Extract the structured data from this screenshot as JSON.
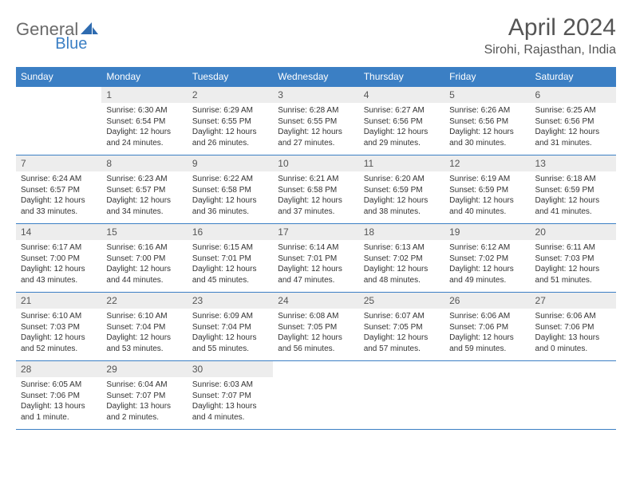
{
  "brand": {
    "part1": "General",
    "part2": "Blue"
  },
  "title": "April 2024",
  "location": "Sirohi, Rajasthan, India",
  "colors": {
    "header_bg": "#3b7fc4",
    "header_text": "#ffffff",
    "daynum_bg": "#ededed",
    "body_text": "#333333",
    "rule": "#3b7fc4",
    "title_text": "#555555"
  },
  "weekdays": [
    "Sunday",
    "Monday",
    "Tuesday",
    "Wednesday",
    "Thursday",
    "Friday",
    "Saturday"
  ],
  "weeks": [
    [
      null,
      {
        "n": "1",
        "sr": "Sunrise: 6:30 AM",
        "ss": "Sunset: 6:54 PM",
        "d1": "Daylight: 12 hours",
        "d2": "and 24 minutes."
      },
      {
        "n": "2",
        "sr": "Sunrise: 6:29 AM",
        "ss": "Sunset: 6:55 PM",
        "d1": "Daylight: 12 hours",
        "d2": "and 26 minutes."
      },
      {
        "n": "3",
        "sr": "Sunrise: 6:28 AM",
        "ss": "Sunset: 6:55 PM",
        "d1": "Daylight: 12 hours",
        "d2": "and 27 minutes."
      },
      {
        "n": "4",
        "sr": "Sunrise: 6:27 AM",
        "ss": "Sunset: 6:56 PM",
        "d1": "Daylight: 12 hours",
        "d2": "and 29 minutes."
      },
      {
        "n": "5",
        "sr": "Sunrise: 6:26 AM",
        "ss": "Sunset: 6:56 PM",
        "d1": "Daylight: 12 hours",
        "d2": "and 30 minutes."
      },
      {
        "n": "6",
        "sr": "Sunrise: 6:25 AM",
        "ss": "Sunset: 6:56 PM",
        "d1": "Daylight: 12 hours",
        "d2": "and 31 minutes."
      }
    ],
    [
      {
        "n": "7",
        "sr": "Sunrise: 6:24 AM",
        "ss": "Sunset: 6:57 PM",
        "d1": "Daylight: 12 hours",
        "d2": "and 33 minutes."
      },
      {
        "n": "8",
        "sr": "Sunrise: 6:23 AM",
        "ss": "Sunset: 6:57 PM",
        "d1": "Daylight: 12 hours",
        "d2": "and 34 minutes."
      },
      {
        "n": "9",
        "sr": "Sunrise: 6:22 AM",
        "ss": "Sunset: 6:58 PM",
        "d1": "Daylight: 12 hours",
        "d2": "and 36 minutes."
      },
      {
        "n": "10",
        "sr": "Sunrise: 6:21 AM",
        "ss": "Sunset: 6:58 PM",
        "d1": "Daylight: 12 hours",
        "d2": "and 37 minutes."
      },
      {
        "n": "11",
        "sr": "Sunrise: 6:20 AM",
        "ss": "Sunset: 6:59 PM",
        "d1": "Daylight: 12 hours",
        "d2": "and 38 minutes."
      },
      {
        "n": "12",
        "sr": "Sunrise: 6:19 AM",
        "ss": "Sunset: 6:59 PM",
        "d1": "Daylight: 12 hours",
        "d2": "and 40 minutes."
      },
      {
        "n": "13",
        "sr": "Sunrise: 6:18 AM",
        "ss": "Sunset: 6:59 PM",
        "d1": "Daylight: 12 hours",
        "d2": "and 41 minutes."
      }
    ],
    [
      {
        "n": "14",
        "sr": "Sunrise: 6:17 AM",
        "ss": "Sunset: 7:00 PM",
        "d1": "Daylight: 12 hours",
        "d2": "and 43 minutes."
      },
      {
        "n": "15",
        "sr": "Sunrise: 6:16 AM",
        "ss": "Sunset: 7:00 PM",
        "d1": "Daylight: 12 hours",
        "d2": "and 44 minutes."
      },
      {
        "n": "16",
        "sr": "Sunrise: 6:15 AM",
        "ss": "Sunset: 7:01 PM",
        "d1": "Daylight: 12 hours",
        "d2": "and 45 minutes."
      },
      {
        "n": "17",
        "sr": "Sunrise: 6:14 AM",
        "ss": "Sunset: 7:01 PM",
        "d1": "Daylight: 12 hours",
        "d2": "and 47 minutes."
      },
      {
        "n": "18",
        "sr": "Sunrise: 6:13 AM",
        "ss": "Sunset: 7:02 PM",
        "d1": "Daylight: 12 hours",
        "d2": "and 48 minutes."
      },
      {
        "n": "19",
        "sr": "Sunrise: 6:12 AM",
        "ss": "Sunset: 7:02 PM",
        "d1": "Daylight: 12 hours",
        "d2": "and 49 minutes."
      },
      {
        "n": "20",
        "sr": "Sunrise: 6:11 AM",
        "ss": "Sunset: 7:03 PM",
        "d1": "Daylight: 12 hours",
        "d2": "and 51 minutes."
      }
    ],
    [
      {
        "n": "21",
        "sr": "Sunrise: 6:10 AM",
        "ss": "Sunset: 7:03 PM",
        "d1": "Daylight: 12 hours",
        "d2": "and 52 minutes."
      },
      {
        "n": "22",
        "sr": "Sunrise: 6:10 AM",
        "ss": "Sunset: 7:04 PM",
        "d1": "Daylight: 12 hours",
        "d2": "and 53 minutes."
      },
      {
        "n": "23",
        "sr": "Sunrise: 6:09 AM",
        "ss": "Sunset: 7:04 PM",
        "d1": "Daylight: 12 hours",
        "d2": "and 55 minutes."
      },
      {
        "n": "24",
        "sr": "Sunrise: 6:08 AM",
        "ss": "Sunset: 7:05 PM",
        "d1": "Daylight: 12 hours",
        "d2": "and 56 minutes."
      },
      {
        "n": "25",
        "sr": "Sunrise: 6:07 AM",
        "ss": "Sunset: 7:05 PM",
        "d1": "Daylight: 12 hours",
        "d2": "and 57 minutes."
      },
      {
        "n": "26",
        "sr": "Sunrise: 6:06 AM",
        "ss": "Sunset: 7:06 PM",
        "d1": "Daylight: 12 hours",
        "d2": "and 59 minutes."
      },
      {
        "n": "27",
        "sr": "Sunrise: 6:06 AM",
        "ss": "Sunset: 7:06 PM",
        "d1": "Daylight: 13 hours",
        "d2": "and 0 minutes."
      }
    ],
    [
      {
        "n": "28",
        "sr": "Sunrise: 6:05 AM",
        "ss": "Sunset: 7:06 PM",
        "d1": "Daylight: 13 hours",
        "d2": "and 1 minute."
      },
      {
        "n": "29",
        "sr": "Sunrise: 6:04 AM",
        "ss": "Sunset: 7:07 PM",
        "d1": "Daylight: 13 hours",
        "d2": "and 2 minutes."
      },
      {
        "n": "30",
        "sr": "Sunrise: 6:03 AM",
        "ss": "Sunset: 7:07 PM",
        "d1": "Daylight: 13 hours",
        "d2": "and 4 minutes."
      },
      null,
      null,
      null,
      null
    ]
  ]
}
